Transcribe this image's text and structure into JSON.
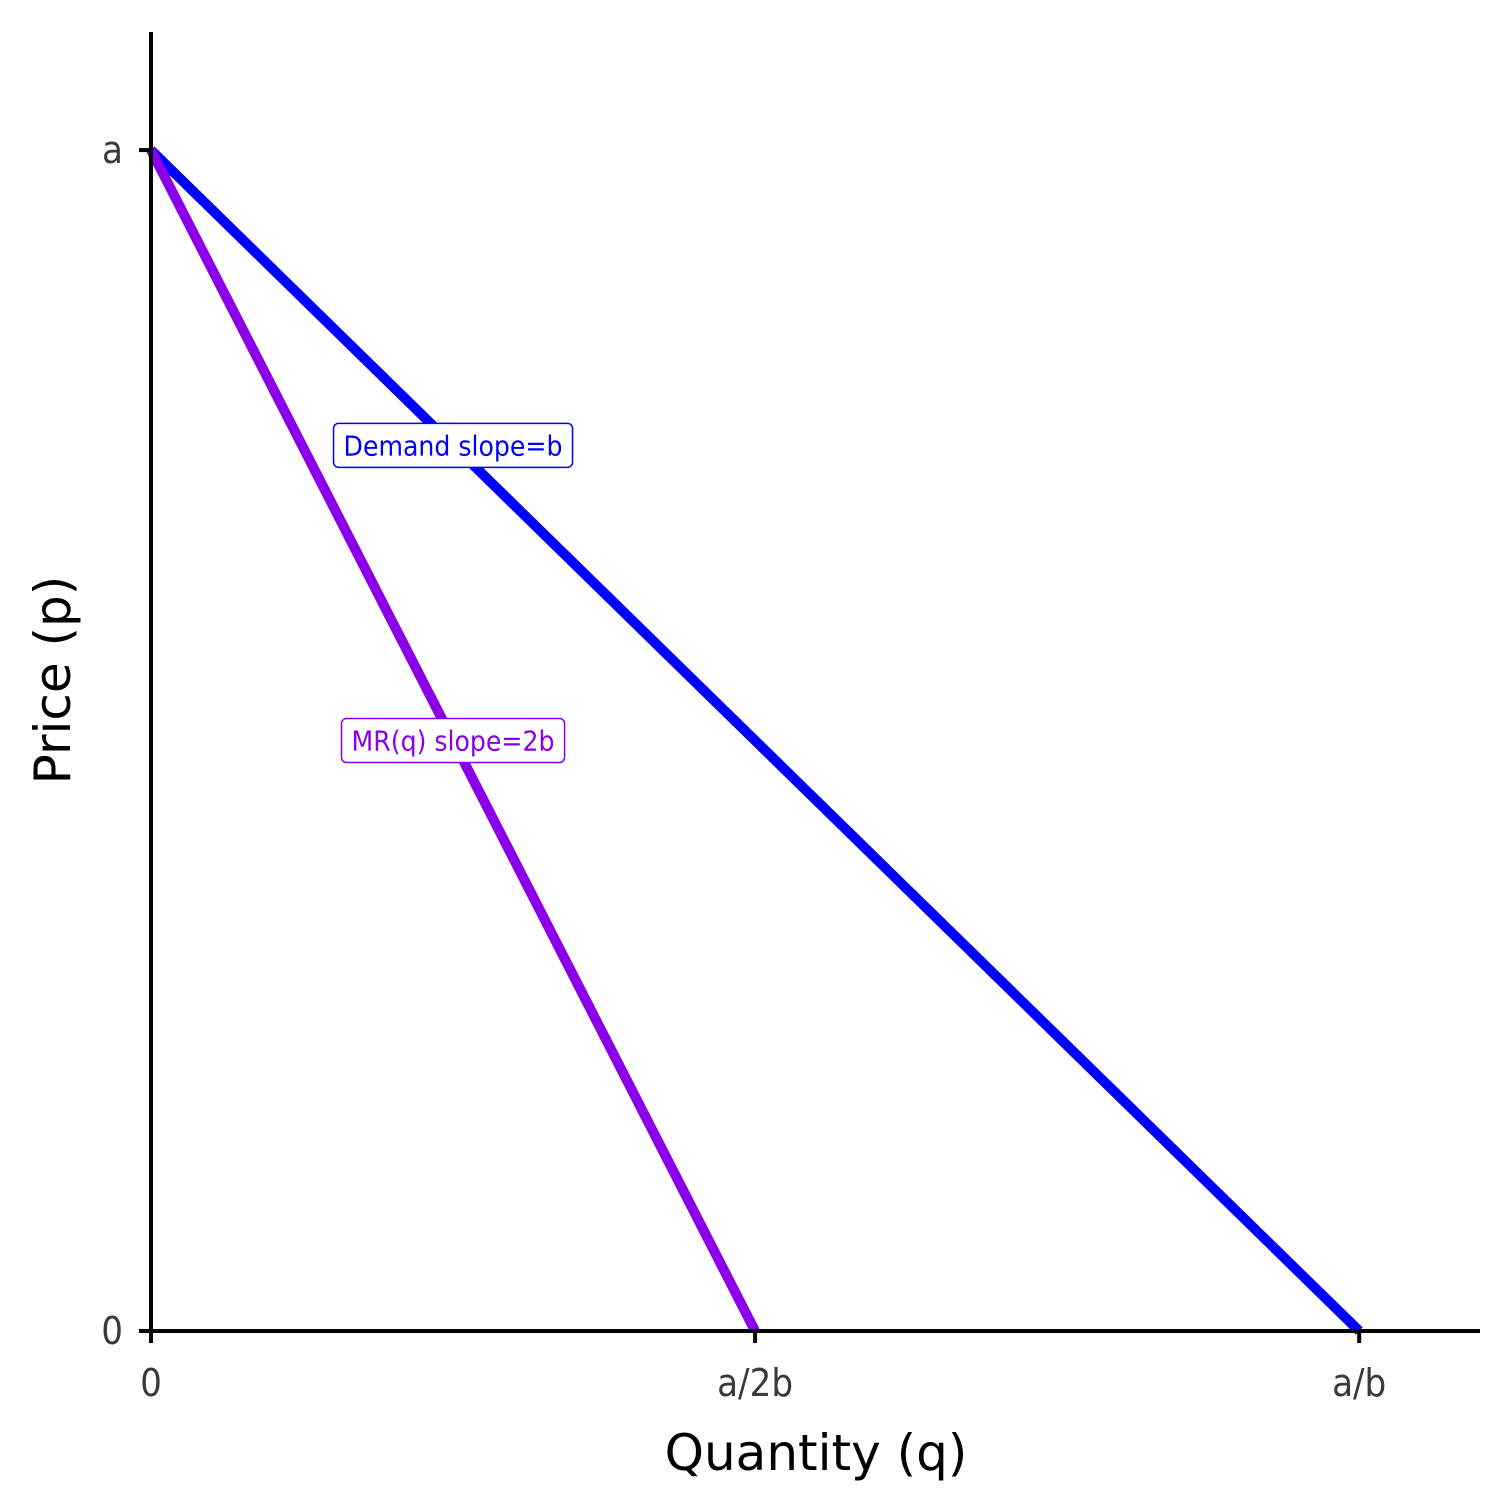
{
  "chart_data": {
    "type": "line",
    "xlabel": "Quantity (q)",
    "ylabel": "Price (p)",
    "xlim": [
      0,
      1.1
    ],
    "ylim": [
      0,
      1.1
    ],
    "x_ticks": [
      {
        "value": 0,
        "label": "0"
      },
      {
        "value": 0.5,
        "label": "a/2b"
      },
      {
        "value": 1,
        "label": "a/b"
      }
    ],
    "y_ticks": [
      {
        "value": 0,
        "label": "0"
      },
      {
        "value": 1,
        "label": "a"
      }
    ],
    "grid": false,
    "series": [
      {
        "name": "Demand slope=b",
        "color": "#0000ff",
        "points": [
          [
            0,
            1
          ],
          [
            1,
            0
          ]
        ],
        "label_at": [
          0.25,
          0.75
        ]
      },
      {
        "name": "MR(q) slope=2b",
        "color": "#8b00e8",
        "points": [
          [
            0,
            1
          ],
          [
            0.5,
            0
          ]
        ],
        "label_at": [
          0.25,
          0.5
        ]
      }
    ]
  }
}
